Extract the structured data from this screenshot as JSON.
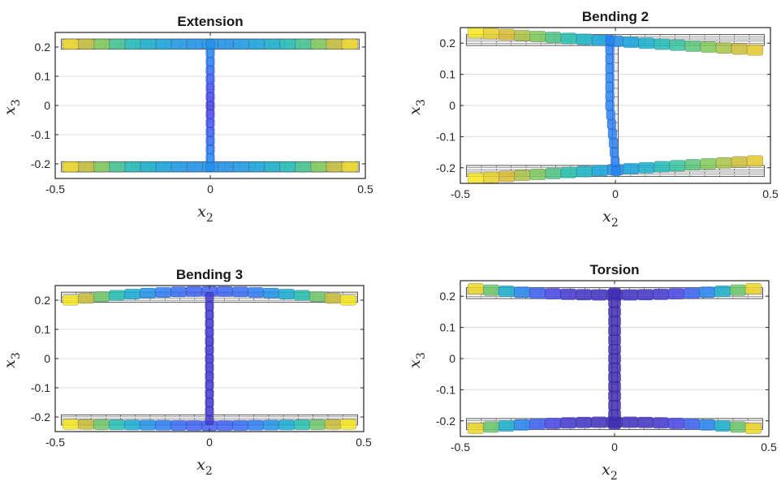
{
  "colormap": [
    "#3e26a8",
    "#4a4af0",
    "#2a7cf5",
    "#14a8db",
    "#24c2aa",
    "#7fc958",
    "#d8ba30",
    "#f5e620"
  ],
  "chart_data": [
    {
      "type": "scatter",
      "title": "Extension",
      "xlabel": "x2",
      "ylabel": "x3",
      "xlim": [
        -0.5,
        0.5
      ],
      "ylim": [
        -0.25,
        0.25
      ],
      "xticks": [
        "-0.5",
        "0",
        "0.5"
      ],
      "yticks": [
        "0.2",
        "0.1",
        "0",
        "-0.1",
        "-0.2"
      ],
      "grid": true,
      "mode": "extension",
      "reference_section": {
        "flange_half_width": 0.45,
        "flange_center_y": 0.21,
        "flange_thickness": 0.035,
        "web_thickness": 0.018
      }
    },
    {
      "type": "scatter",
      "title": "Bending 2",
      "xlabel": "x2",
      "ylabel": "x3",
      "xlim": [
        -0.5,
        0.5
      ],
      "ylim": [
        -0.25,
        0.25
      ],
      "xticks": [
        "-0.5",
        "0",
        "0.5"
      ],
      "yticks": [
        "0.2",
        "0.1",
        "0",
        "-0.1",
        "-0.2"
      ],
      "grid": true,
      "mode": "bending2",
      "reference_section": {
        "flange_half_width": 0.45,
        "flange_center_y": 0.21,
        "flange_thickness": 0.035,
        "web_thickness": 0.018
      }
    },
    {
      "type": "scatter",
      "title": "Bending 3",
      "xlabel": "x2",
      "ylabel": "x3",
      "xlim": [
        -0.5,
        0.5
      ],
      "ylim": [
        -0.25,
        0.25
      ],
      "xticks": [
        "-0.5",
        "0",
        "0.5"
      ],
      "yticks": [
        "0.2",
        "0.1",
        "0",
        "-0.1",
        "-0.2"
      ],
      "grid": true,
      "mode": "bending3",
      "reference_section": {
        "flange_half_width": 0.45,
        "flange_center_y": 0.21,
        "flange_thickness": 0.035,
        "web_thickness": 0.018
      }
    },
    {
      "type": "scatter",
      "title": "Torsion",
      "xlabel": "x2",
      "ylabel": "x3",
      "xlim": [
        -0.5,
        0.5
      ],
      "ylim": [
        -0.25,
        0.25
      ],
      "xticks": [
        "-0.5",
        "0",
        "0.5"
      ],
      "yticks": [
        "0.2",
        "0.1",
        "0",
        "-0.1",
        "-0.2"
      ],
      "grid": true,
      "mode": "torsion",
      "reference_section": {
        "flange_half_width": 0.45,
        "flange_center_y": 0.21,
        "flange_thickness": 0.035,
        "web_thickness": 0.018
      }
    }
  ]
}
